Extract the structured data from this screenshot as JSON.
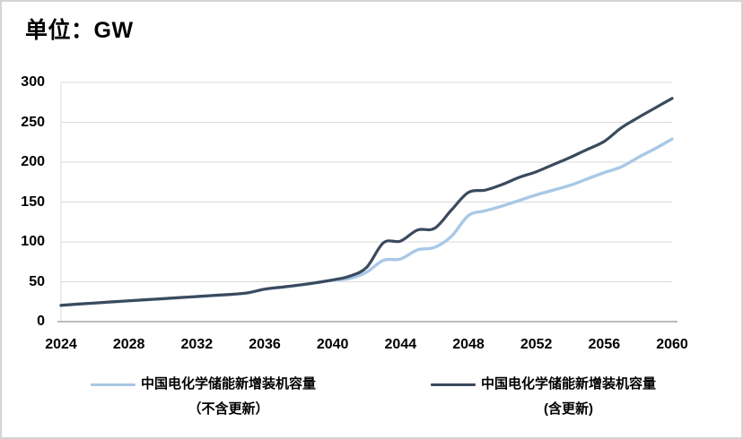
{
  "title": "单位：GW",
  "colors": {
    "series_no_renewal": "#a8c8e6",
    "series_with_renewal": "#3a4a5e",
    "gridline": "#d9d9d9",
    "axis_line": "#a6a6a6",
    "text": "#000000",
    "page_border": "#d4d4d4"
  },
  "chart_data": {
    "type": "line",
    "title": "单位：GW",
    "xlabel": "",
    "ylabel": "",
    "ylim": [
      0,
      300
    ],
    "y_ticks": [
      0,
      50,
      100,
      150,
      200,
      250,
      300
    ],
    "y_tick_labels": [
      "0",
      "50",
      "100",
      "150",
      "200",
      "250",
      "300"
    ],
    "x": [
      2024,
      2025,
      2026,
      2027,
      2028,
      2029,
      2030,
      2031,
      2032,
      2033,
      2034,
      2035,
      2036,
      2037,
      2038,
      2039,
      2040,
      2041,
      2042,
      2043,
      2044,
      2045,
      2046,
      2047,
      2048,
      2049,
      2050,
      2051,
      2052,
      2053,
      2054,
      2055,
      2056,
      2057,
      2058,
      2059,
      2060
    ],
    "x_tick_labels": [
      "2024",
      "2028",
      "2032",
      "2036",
      "2040",
      "2044",
      "2048",
      "2052",
      "2056",
      "2060"
    ],
    "x_tick_step": 4,
    "grid": "horizontal",
    "legend_position": "bottom",
    "line_style": "smooth",
    "series": [
      {
        "name": "中国电化学储能新增装机容量（不含更新）",
        "legend_line1": "中国电化学储能新增装机容量",
        "legend_line2": "（不含更新）",
        "color": "#a8c8e6",
        "stroke_width": 3.4,
        "values": [
          20.3,
          21.8,
          23.2,
          24.6,
          26,
          27.3,
          28.6,
          30,
          31.3,
          32.7,
          34,
          36,
          40.5,
          43,
          45.5,
          48.5,
          52,
          54,
          62,
          77,
          78.5,
          90,
          93,
          107,
          133,
          139,
          145,
          152,
          159,
          165,
          171,
          179,
          187,
          194,
          206,
          217,
          229
        ]
      },
      {
        "name": "中国电化学储能新增装机容量(含更新)",
        "legend_line1": "中国电化学储能新增装机容量",
        "legend_line2": "(含更新)",
        "color": "#3a4a5e",
        "stroke_width": 3.2,
        "values": [
          20.5,
          22,
          23.4,
          24.8,
          26.2,
          27.5,
          28.8,
          30.2,
          31.5,
          32.9,
          34.2,
          36.2,
          40.8,
          43.3,
          45.8,
          48.8,
          52.3,
          57,
          68,
          99,
          101,
          115,
          117,
          140,
          162,
          165,
          172,
          181,
          188,
          197,
          206,
          216,
          226,
          243,
          256,
          268,
          280
        ]
      }
    ]
  }
}
